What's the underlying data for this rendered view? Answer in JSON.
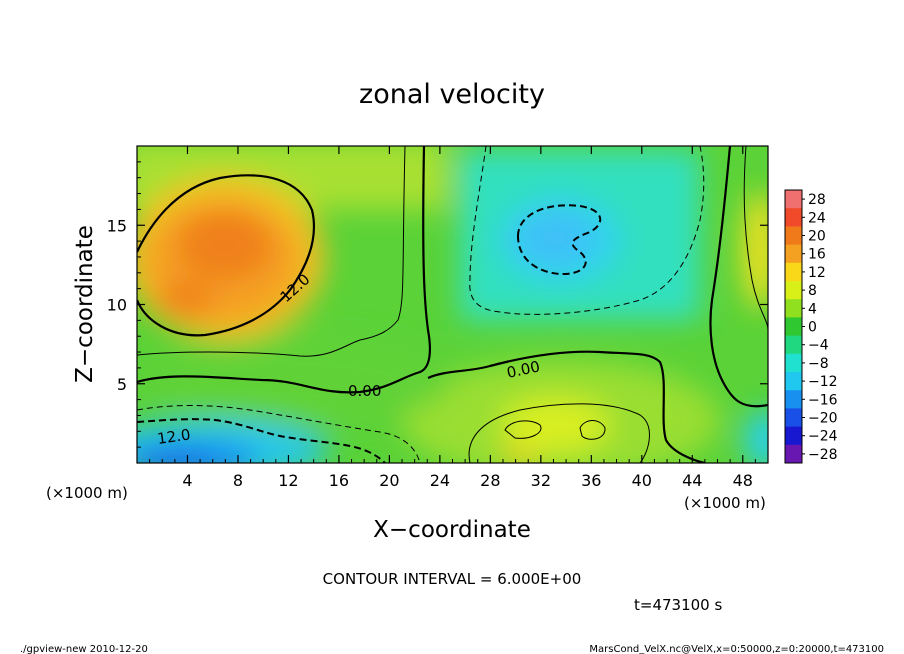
{
  "chart_data": {
    "type": "heatmap",
    "title": "zonal velocity",
    "xlabel": "X−coordinate",
    "ylabel": "Z−coordinate",
    "x_unit_left": "(×1000 m)",
    "x_unit_right": "(×1000 m)",
    "xlim": [
      0,
      50
    ],
    "ylim": [
      0,
      20
    ],
    "x_ticks": [
      4,
      8,
      12,
      16,
      20,
      24,
      28,
      32,
      36,
      40,
      44,
      48
    ],
    "x_tick_labels": [
      "4",
      "8",
      "12",
      "16",
      "20",
      "24",
      "28",
      "32",
      "36",
      "40",
      "44",
      "48"
    ],
    "y_ticks": [
      5,
      10,
      15
    ],
    "y_tick_labels": [
      "5",
      "10",
      "15"
    ],
    "colorbar": {
      "levels": [
        28,
        24,
        20,
        16,
        12,
        8,
        4,
        0,
        -4,
        -8,
        -12,
        -16,
        -20,
        -24,
        -28
      ],
      "labels": [
        "28",
        "24",
        "20",
        "16",
        "12",
        "8",
        "4",
        "0",
        "−4",
        "−8",
        "−12",
        "−16",
        "−20",
        "−24",
        "−28"
      ],
      "colors": [
        "#f07070",
        "#f04a2a",
        "#f07a1a",
        "#f4a020",
        "#f8d818",
        "#d8f018",
        "#90e020",
        "#30c830",
        "#20d880",
        "#20e0d0",
        "#20c8f0",
        "#1890f0",
        "#1850e8",
        "#1818d0",
        "#6818b0"
      ]
    },
    "contour_labels": [
      "12.0",
      "0.00",
      "0.00",
      "12.0"
    ],
    "contour_interval_text": "CONTOUR INTERVAL = 6.000E+00",
    "time_text": "t=473100  s"
  },
  "footer": {
    "left": "./gpview-new  2010-12-20",
    "right": "MarsCond_VelX.nc@VelX,x=0:50000,z=0:20000,t=473100"
  }
}
